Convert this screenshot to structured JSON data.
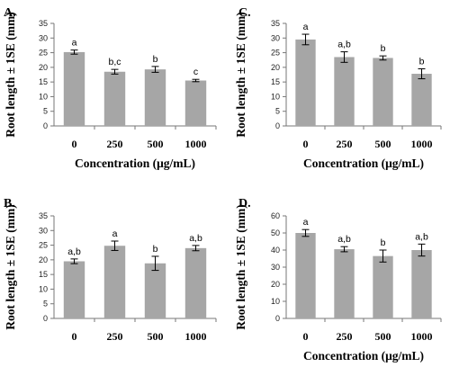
{
  "chart_data": [
    {
      "type": "bar",
      "panel_label": "A.",
      "categories": [
        "0",
        "250",
        "500",
        "1000"
      ],
      "values": [
        25.2,
        18.5,
        19.3,
        15.5
      ],
      "errors": [
        0.7,
        0.8,
        1.0,
        0.4
      ],
      "annotations": [
        "a",
        "b,c",
        "b",
        "c"
      ],
      "ylim": [
        0,
        35
      ],
      "yticks": [
        0,
        5,
        10,
        15,
        20,
        25,
        30,
        35
      ],
      "xlabel": "Concentration (μg/mL)",
      "ylabel": "Root length ± 1SE (mm)"
    },
    {
      "type": "bar",
      "panel_label": "B.",
      "categories": [
        "0",
        "250",
        "500",
        "1000"
      ],
      "values": [
        19.5,
        24.8,
        18.8,
        24.0
      ],
      "errors": [
        0.8,
        1.6,
        2.4,
        0.9
      ],
      "annotations": [
        "a,b",
        "a",
        "b",
        "a,b"
      ],
      "ylim": [
        0,
        35
      ],
      "yticks": [
        0,
        5,
        10,
        15,
        20,
        25,
        30,
        35
      ],
      "xlabel": "",
      "ylabel": "Root length ± 1SE (mm)"
    },
    {
      "type": "bar",
      "panel_label": "C.",
      "categories": [
        "0",
        "250",
        "500",
        "1000"
      ],
      "values": [
        29.5,
        23.5,
        23.2,
        17.8
      ],
      "errors": [
        1.8,
        1.8,
        0.7,
        1.7
      ],
      "annotations": [
        "a",
        "a,b",
        "b",
        "b"
      ],
      "ylim": [
        0,
        35
      ],
      "yticks": [
        0,
        5,
        10,
        15,
        20,
        25,
        30,
        35
      ],
      "xlabel": "Concentration (μg/mL)",
      "ylabel": "Root length ± 1SE (mm)"
    },
    {
      "type": "bar",
      "panel_label": "D.",
      "categories": [
        "0",
        "250",
        "500",
        "1000"
      ],
      "values": [
        50.0,
        40.5,
        36.5,
        40.0
      ],
      "errors": [
        2.0,
        1.5,
        3.5,
        3.5
      ],
      "annotations": [
        "a",
        "a,b",
        "b",
        "a,b"
      ],
      "ylim": [
        0,
        60
      ],
      "yticks": [
        0,
        10,
        20,
        30,
        40,
        50,
        60
      ],
      "xlabel": "Concentration (μg/mL)",
      "ylabel": "Root length ± 1SE (mm)"
    }
  ]
}
